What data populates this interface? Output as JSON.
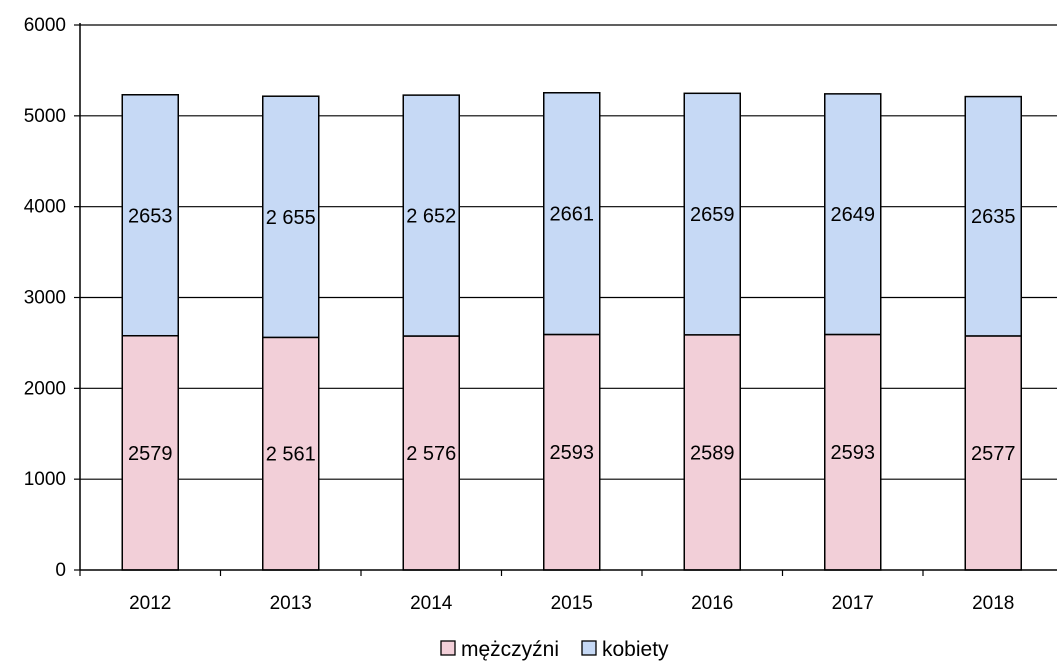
{
  "chart_data": {
    "type": "bar",
    "stacked": true,
    "categories": [
      "2012",
      "2013",
      "2014",
      "2015",
      "2016",
      "2017",
      "2018"
    ],
    "series": [
      {
        "name": "mężczyźni",
        "values": [
          2579,
          2561,
          2576,
          2593,
          2589,
          2593,
          2577
        ],
        "labels": [
          "2579",
          "2 561",
          "2 576",
          "2593",
          "2589",
          "2593",
          "2577"
        ],
        "color": "#f2cfd8"
      },
      {
        "name": "kobiety",
        "values": [
          2653,
          2655,
          2652,
          2661,
          2659,
          2649,
          2635
        ],
        "labels": [
          "2653",
          "2 655",
          "2 652",
          "2661",
          "2659",
          "2649",
          "2635"
        ],
        "color": "#c6d9f5"
      }
    ],
    "ylim": [
      0,
      6000
    ],
    "yticks": [
      "0",
      "1000",
      "2000",
      "3000",
      "4000",
      "5000",
      "6000"
    ],
    "grid": true,
    "legend_position": "bottom"
  }
}
